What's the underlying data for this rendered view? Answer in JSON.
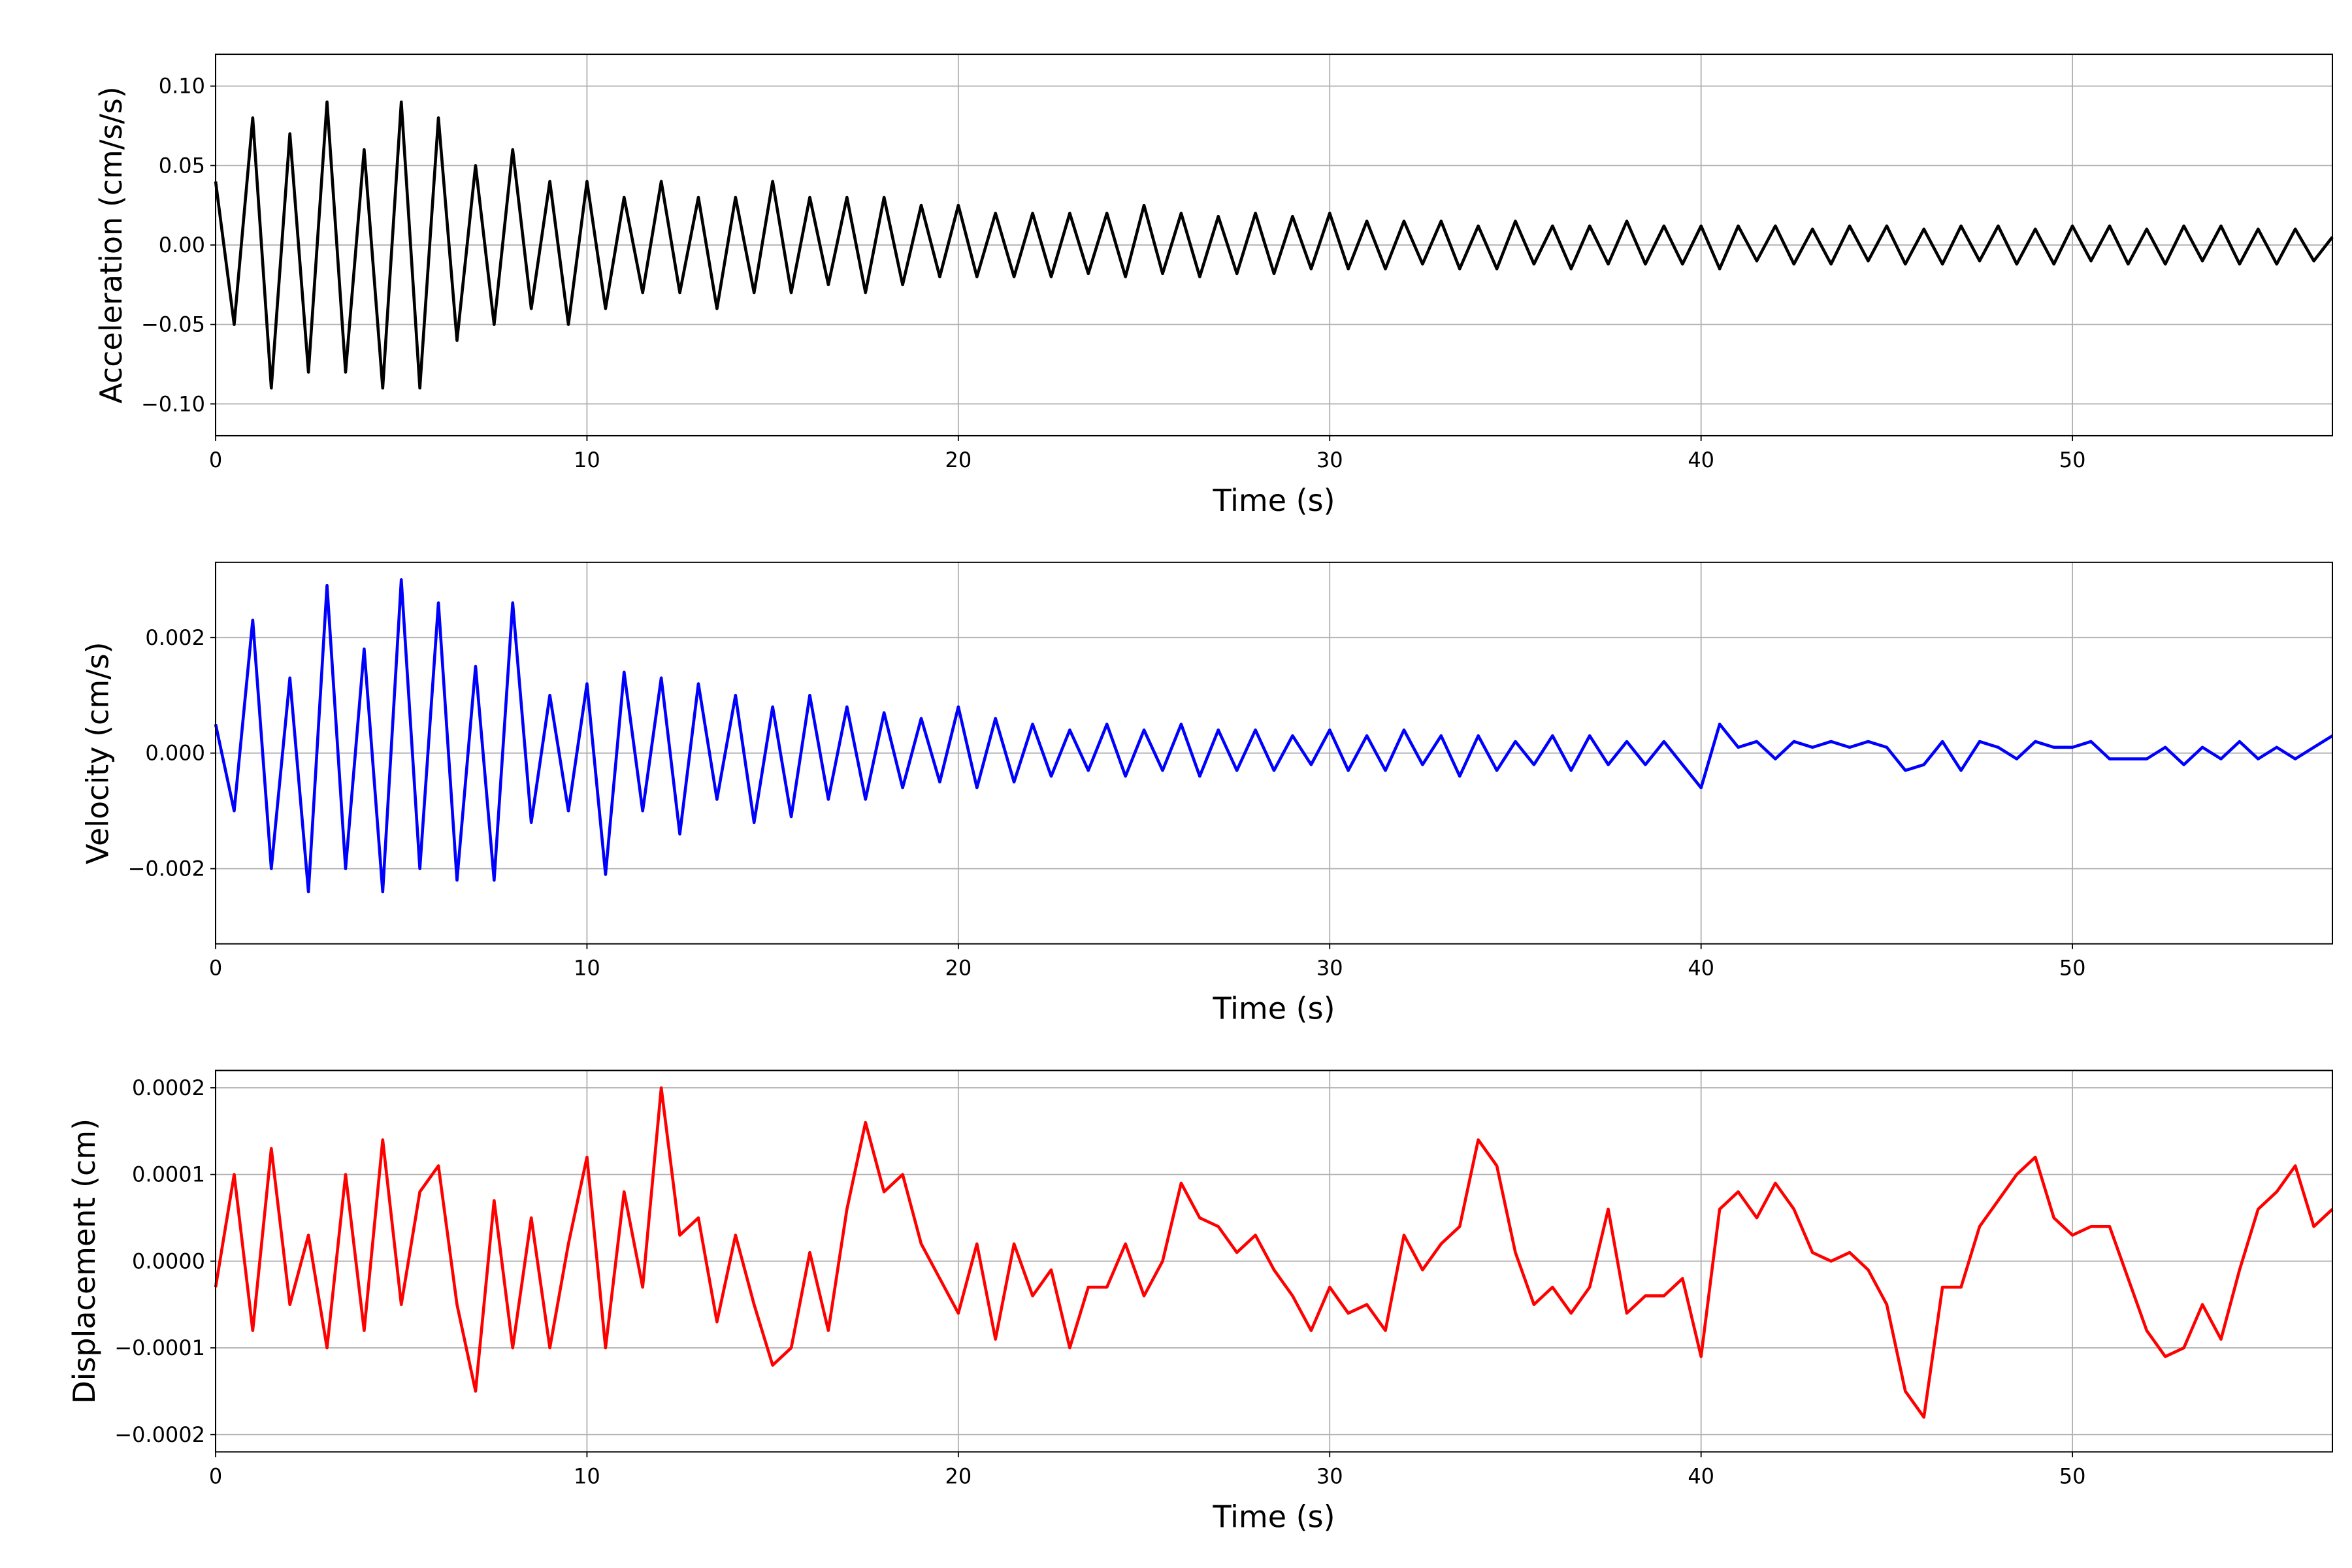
{
  "chart_data": [
    {
      "type": "line",
      "xlabel": "Time (s)",
      "ylabel": "Acceleration (cm/s/s)",
      "color": "#000000",
      "grid": true,
      "xlim": [
        0,
        57
      ],
      "xticks": [
        0,
        10,
        20,
        30,
        40,
        50
      ],
      "ylim": [
        -0.12,
        0.12
      ],
      "yticks": [
        {
          "value": -0.1,
          "label": "−0.10"
        },
        {
          "value": -0.05,
          "label": "−0.05"
        },
        {
          "value": 0,
          "label": "0.00"
        },
        {
          "value": 0.05,
          "label": "0.05"
        },
        {
          "value": 0.1,
          "label": "0.10"
        }
      ],
      "x": [
        0,
        0.5,
        1,
        1.5,
        2,
        2.5,
        3,
        3.5,
        4,
        4.5,
        5,
        5.5,
        6,
        6.5,
        7,
        7.5,
        8,
        8.5,
        9,
        9.5,
        10,
        10.5,
        11,
        11.5,
        12,
        12.5,
        13,
        13.5,
        14,
        14.5,
        15,
        15.5,
        16,
        16.5,
        17,
        17.5,
        18,
        18.5,
        19,
        19.5,
        20,
        20.5,
        21,
        21.5,
        22,
        22.5,
        23,
        23.5,
        24,
        24.5,
        25,
        25.5,
        26,
        26.5,
        27,
        27.5,
        28,
        28.5,
        29,
        29.5,
        30,
        30.5,
        31,
        31.5,
        32,
        32.5,
        33,
        33.5,
        34,
        34.5,
        35,
        35.5,
        36,
        36.5,
        37,
        37.5,
        38,
        38.5,
        39,
        39.5,
        40,
        40.5,
        41,
        41.5,
        42,
        42.5,
        43,
        43.5,
        44,
        44.5,
        45,
        45.5,
        46,
        46.5,
        47,
        47.5,
        48,
        48.5,
        49,
        49.5,
        50,
        50.5,
        51,
        51.5,
        52,
        52.5,
        53,
        53.5,
        54,
        54.5,
        55,
        55.5,
        56,
        56.5,
        57
      ],
      "values": [
        0.04,
        -0.05,
        0.08,
        -0.09,
        0.07,
        -0.08,
        0.09,
        -0.08,
        0.06,
        -0.09,
        0.09,
        -0.09,
        0.08,
        -0.06,
        0.05,
        -0.05,
        0.06,
        -0.04,
        0.04,
        -0.05,
        0.04,
        -0.04,
        0.03,
        -0.03,
        0.04,
        -0.03,
        0.03,
        -0.04,
        0.03,
        -0.03,
        0.04,
        -0.03,
        0.03,
        -0.025,
        0.03,
        -0.03,
        0.03,
        -0.025,
        0.025,
        -0.02,
        0.025,
        -0.02,
        0.02,
        -0.02,
        0.02,
        -0.02,
        0.02,
        -0.018,
        0.02,
        -0.02,
        0.025,
        -0.018,
        0.02,
        -0.02,
        0.018,
        -0.018,
        0.02,
        -0.018,
        0.018,
        -0.015,
        0.02,
        -0.015,
        0.015,
        -0.015,
        0.015,
        -0.012,
        0.015,
        -0.015,
        0.012,
        -0.015,
        0.015,
        -0.012,
        0.012,
        -0.015,
        0.012,
        -0.012,
        0.015,
        -0.012,
        0.012,
        -0.012,
        0.012,
        -0.015,
        0.012,
        -0.01,
        0.012,
        -0.012,
        0.01,
        -0.012,
        0.012,
        -0.01,
        0.012,
        -0.012,
        0.01,
        -0.012,
        0.012,
        -0.01,
        0.012,
        -0.012,
        0.01,
        -0.012,
        0.012,
        -0.01,
        0.012,
        -0.012,
        0.01,
        -0.012,
        0.012,
        -0.01,
        0.012,
        -0.012,
        0.01,
        -0.012,
        0.01,
        -0.01,
        0.005
      ]
    },
    {
      "type": "line",
      "xlabel": "Time (s)",
      "ylabel": "Velocity (cm/s)",
      "color": "#0000ff",
      "grid": true,
      "xlim": [
        0,
        57
      ],
      "xticks": [
        0,
        10,
        20,
        30,
        40,
        50
      ],
      "ylim": [
        -0.0033,
        0.0033
      ],
      "yticks": [
        {
          "value": -0.002,
          "label": "−0.002"
        },
        {
          "value": 0,
          "label": "0.000"
        },
        {
          "value": 0.002,
          "label": "0.002"
        }
      ],
      "x": [
        0,
        0.5,
        1,
        1.5,
        2,
        2.5,
        3,
        3.5,
        4,
        4.5,
        5,
        5.5,
        6,
        6.5,
        7,
        7.5,
        8,
        8.5,
        9,
        9.5,
        10,
        10.5,
        11,
        11.5,
        12,
        12.5,
        13,
        13.5,
        14,
        14.5,
        15,
        15.5,
        16,
        16.5,
        17,
        17.5,
        18,
        18.5,
        19,
        19.5,
        20,
        20.5,
        21,
        21.5,
        22,
        22.5,
        23,
        23.5,
        24,
        24.5,
        25,
        25.5,
        26,
        26.5,
        27,
        27.5,
        28,
        28.5,
        29,
        29.5,
        30,
        30.5,
        31,
        31.5,
        32,
        32.5,
        33,
        33.5,
        34,
        34.5,
        35,
        35.5,
        36,
        36.5,
        37,
        37.5,
        38,
        38.5,
        39,
        39.5,
        40,
        40.5,
        41,
        41.5,
        42,
        42.5,
        43,
        43.5,
        44,
        44.5,
        45,
        45.5,
        46,
        46.5,
        47,
        47.5,
        48,
        48.5,
        49,
        49.5,
        50,
        50.5,
        51,
        51.5,
        52,
        52.5,
        53,
        53.5,
        54,
        54.5,
        55,
        55.5,
        56,
        56.5,
        57
      ],
      "values": [
        0.0005,
        -0.001,
        0.0023,
        -0.002,
        0.0013,
        -0.0024,
        0.0029,
        -0.002,
        0.0018,
        -0.0024,
        0.003,
        -0.002,
        0.0026,
        -0.0022,
        0.0015,
        -0.0022,
        0.0026,
        -0.0012,
        0.001,
        -0.001,
        0.0012,
        -0.0021,
        0.0014,
        -0.001,
        0.0013,
        -0.0014,
        0.0012,
        -0.0008,
        0.001,
        -0.0012,
        0.0008,
        -0.0011,
        0.001,
        -0.0008,
        0.0008,
        -0.0008,
        0.0007,
        -0.0006,
        0.0006,
        -0.0005,
        0.0008,
        -0.0006,
        0.0006,
        -0.0005,
        0.0005,
        -0.0004,
        0.0004,
        -0.0003,
        0.0005,
        -0.0004,
        0.0004,
        -0.0003,
        0.0005,
        -0.0004,
        0.0004,
        -0.0003,
        0.0004,
        -0.0003,
        0.0003,
        -0.0002,
        0.0004,
        -0.0003,
        0.0003,
        -0.0003,
        0.0004,
        -0.0002,
        0.0003,
        -0.0004,
        0.0003,
        -0.0003,
        0.0002,
        -0.0002,
        0.0003,
        -0.0003,
        0.0003,
        -0.0002,
        0.0002,
        -0.0002,
        0.0002,
        -0.0002,
        -0.0006,
        0.0005,
        0.0001,
        0.0002,
        -0.0001,
        0.0002,
        0.0001,
        0.0002,
        0.0001,
        0.0002,
        0.0001,
        -0.0003,
        -0.0002,
        0.0002,
        -0.0003,
        0.0002,
        0.0001,
        -0.0001,
        0.0002,
        0.0001,
        0.0001,
        0.0002,
        -0.0001,
        -0.0001,
        -0.0001,
        0.0001,
        -0.0002,
        0.0001,
        -0.0001,
        0.0002,
        -0.0001,
        0.0001,
        -0.0001,
        0.0001,
        0.0003
      ]
    },
    {
      "type": "line",
      "xlabel": "Time (s)",
      "ylabel": "Displacement (cm)",
      "color": "#ff0000",
      "grid": true,
      "xlim": [
        0,
        57
      ],
      "xticks": [
        0,
        10,
        20,
        30,
        40,
        50
      ],
      "ylim": [
        -0.00022,
        0.00022
      ],
      "yticks": [
        {
          "value": -0.0002,
          "label": "−0.0002"
        },
        {
          "value": -0.0001,
          "label": "−0.0001"
        },
        {
          "value": 0,
          "label": "0.0000"
        },
        {
          "value": 0.0001,
          "label": "0.0001"
        },
        {
          "value": 0.0002,
          "label": "0.0002"
        }
      ],
      "x": [
        0,
        0.5,
        1,
        1.5,
        2,
        2.5,
        3,
        3.5,
        4,
        4.5,
        5,
        5.5,
        6,
        6.5,
        7,
        7.5,
        8,
        8.5,
        9,
        9.5,
        10,
        10.5,
        11,
        11.5,
        12,
        12.5,
        13,
        13.5,
        14,
        14.5,
        15,
        15.5,
        16,
        16.5,
        17,
        17.5,
        18,
        18.5,
        19,
        19.5,
        20,
        20.5,
        21,
        21.5,
        22,
        22.5,
        23,
        23.5,
        24,
        24.5,
        25,
        25.5,
        26,
        26.5,
        27,
        27.5,
        28,
        28.5,
        29,
        29.5,
        30,
        30.5,
        31,
        31.5,
        32,
        32.5,
        33,
        33.5,
        34,
        34.5,
        35,
        35.5,
        36,
        36.5,
        37,
        37.5,
        38,
        38.5,
        39,
        39.5,
        40,
        40.5,
        41,
        41.5,
        42,
        42.5,
        43,
        43.5,
        44,
        44.5,
        45,
        45.5,
        46,
        46.5,
        47,
        47.5,
        48,
        48.5,
        49,
        49.5,
        50,
        50.5,
        51,
        51.5,
        52,
        52.5,
        53,
        53.5,
        54,
        54.5,
        55,
        55.5,
        56,
        56.5,
        57
      ],
      "values": [
        -3e-05,
        0.0001,
        -8e-05,
        0.00013,
        -5e-05,
        3e-05,
        -0.0001,
        0.0001,
        -8e-05,
        0.00014,
        -5e-05,
        8e-05,
        0.00011,
        -5e-05,
        -0.00015,
        7e-05,
        -0.0001,
        5e-05,
        -0.0001,
        2e-05,
        0.00012,
        -0.0001,
        8e-05,
        -3e-05,
        0.0002,
        3e-05,
        5e-05,
        -7e-05,
        3e-05,
        -5e-05,
        -0.00012,
        -0.0001,
        1e-05,
        -8e-05,
        6e-05,
        0.00016,
        8e-05,
        0.0001,
        2e-05,
        -2e-05,
        -6e-05,
        2e-05,
        -9e-05,
        2e-05,
        -4e-05,
        -1e-05,
        -0.0001,
        -3e-05,
        -3e-05,
        2e-05,
        -4e-05,
        0,
        9e-05,
        5e-05,
        4e-05,
        1e-05,
        3e-05,
        -1e-05,
        -4e-05,
        -8e-05,
        -3e-05,
        -6e-05,
        -5e-05,
        -8e-05,
        3e-05,
        -1e-05,
        2e-05,
        4e-05,
        0.00014,
        0.00011,
        1e-05,
        -5e-05,
        -3e-05,
        -6e-05,
        -3e-05,
        6e-05,
        -6e-05,
        -4e-05,
        -4e-05,
        -2e-05,
        -0.00011,
        6e-05,
        8e-05,
        5e-05,
        9e-05,
        6e-05,
        1e-05,
        0,
        1e-05,
        -1e-05,
        -5e-05,
        -0.00015,
        -0.00018,
        -3e-05,
        -3e-05,
        4e-05,
        7e-05,
        0.0001,
        0.00012,
        5e-05,
        3e-05,
        4e-05,
        4e-05,
        -2e-05,
        -8e-05,
        -0.00011,
        -0.0001,
        -5e-05,
        -9e-05,
        -1e-05,
        6e-05,
        8e-05,
        0.00011,
        4e-05,
        6e-05
      ]
    }
  ]
}
